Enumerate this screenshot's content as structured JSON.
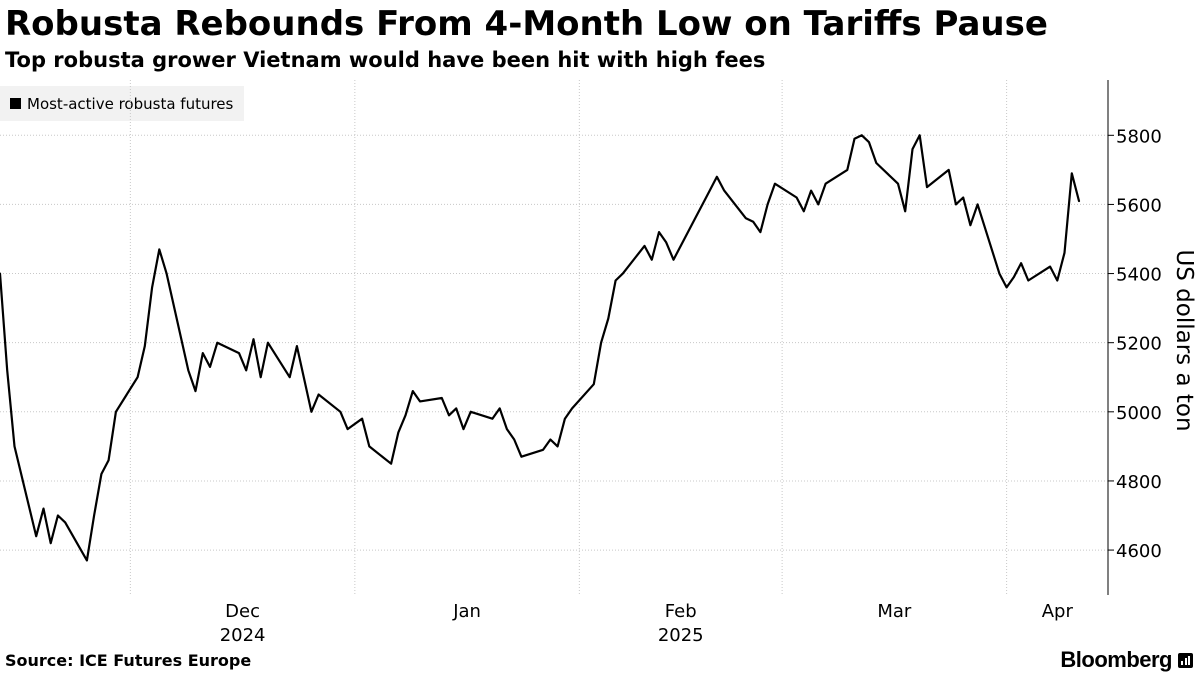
{
  "header": {
    "title": "Robusta Rebounds From 4-Month Low on Tariffs Pause",
    "subtitle": "Top robusta grower Vietnam would have been hit with high fees"
  },
  "footer": {
    "source": "Source: ICE Futures Europe",
    "brand": "Bloomberg"
  },
  "colors": {
    "line": "#000000",
    "grid": "#c8c8c8",
    "legend_bg": "#f2f2f2"
  },
  "chart_data": {
    "type": "line",
    "title": "Robusta Rebounds From 4-Month Low on Tariffs Pause",
    "subtitle": "Top robusta grower Vietnam would have been hit with high fees",
    "ylabel": "US dollars a ton",
    "ylim": [
      4470,
      5960
    ],
    "xlim": [
      "2024-11-13",
      "2025-04-15"
    ],
    "y_ticks": [
      4600,
      4800,
      5000,
      5200,
      5400,
      5600,
      5800
    ],
    "x_tick_labels": [
      {
        "label": "Dec",
        "year": "2024",
        "date": "2024-12-01"
      },
      {
        "label": "Jan",
        "year": "",
        "date": "2025-01-01"
      },
      {
        "label": "Feb",
        "year": "2025",
        "date": "2025-02-01"
      },
      {
        "label": "Mar",
        "year": "",
        "date": "2025-03-01"
      },
      {
        "label": "Apr",
        "year": "",
        "date": "2025-04-01"
      }
    ],
    "month_gridlines": [
      "2024-12-01",
      "2025-01-01",
      "2025-02-01",
      "2025-03-01",
      "2025-04-01"
    ],
    "grid": true,
    "legend_position": "top-left",
    "series": [
      {
        "name": "Most-active robusta futures",
        "color": "#000000",
        "points": [
          [
            "2024-11-13",
            5400
          ],
          [
            "2024-11-14",
            5120
          ],
          [
            "2024-11-15",
            4900
          ],
          [
            "2024-11-18",
            4640
          ],
          [
            "2024-11-19",
            4720
          ],
          [
            "2024-11-20",
            4620
          ],
          [
            "2024-11-21",
            4700
          ],
          [
            "2024-11-22",
            4680
          ],
          [
            "2024-11-25",
            4570
          ],
          [
            "2024-11-26",
            4700
          ],
          [
            "2024-11-27",
            4820
          ],
          [
            "2024-11-28",
            4860
          ],
          [
            "2024-11-29",
            5000
          ],
          [
            "2024-12-02",
            5100
          ],
          [
            "2024-12-03",
            5190
          ],
          [
            "2024-12-04",
            5360
          ],
          [
            "2024-12-05",
            5470
          ],
          [
            "2024-12-06",
            5400
          ],
          [
            "2024-12-09",
            5120
          ],
          [
            "2024-12-10",
            5060
          ],
          [
            "2024-12-11",
            5170
          ],
          [
            "2024-12-12",
            5130
          ],
          [
            "2024-12-13",
            5200
          ],
          [
            "2024-12-16",
            5170
          ],
          [
            "2024-12-17",
            5120
          ],
          [
            "2024-12-18",
            5210
          ],
          [
            "2024-12-19",
            5100
          ],
          [
            "2024-12-20",
            5200
          ],
          [
            "2024-12-23",
            5100
          ],
          [
            "2024-12-24",
            5190
          ],
          [
            "2024-12-26",
            5000
          ],
          [
            "2024-12-27",
            5050
          ],
          [
            "2024-12-30",
            5000
          ],
          [
            "2024-12-31",
            4950
          ],
          [
            "2025-01-02",
            4980
          ],
          [
            "2025-01-03",
            4900
          ],
          [
            "2025-01-06",
            4850
          ],
          [
            "2025-01-07",
            4940
          ],
          [
            "2025-01-08",
            4990
          ],
          [
            "2025-01-09",
            5060
          ],
          [
            "2025-01-10",
            5030
          ],
          [
            "2025-01-13",
            5040
          ],
          [
            "2025-01-14",
            4990
          ],
          [
            "2025-01-15",
            5010
          ],
          [
            "2025-01-16",
            4950
          ],
          [
            "2025-01-17",
            5000
          ],
          [
            "2025-01-20",
            4980
          ],
          [
            "2025-01-21",
            5010
          ],
          [
            "2025-01-22",
            4950
          ],
          [
            "2025-01-23",
            4920
          ],
          [
            "2025-01-24",
            4870
          ],
          [
            "2025-01-27",
            4890
          ],
          [
            "2025-01-28",
            4920
          ],
          [
            "2025-01-29",
            4900
          ],
          [
            "2025-01-30",
            4980
          ],
          [
            "2025-01-31",
            5010
          ],
          [
            "2025-02-03",
            5080
          ],
          [
            "2025-02-04",
            5200
          ],
          [
            "2025-02-05",
            5270
          ],
          [
            "2025-02-06",
            5380
          ],
          [
            "2025-02-07",
            5400
          ],
          [
            "2025-02-10",
            5480
          ],
          [
            "2025-02-11",
            5440
          ],
          [
            "2025-02-12",
            5520
          ],
          [
            "2025-02-13",
            5490
          ],
          [
            "2025-02-14",
            5440
          ],
          [
            "2025-02-17",
            5560
          ],
          [
            "2025-02-18",
            5600
          ],
          [
            "2025-02-19",
            5640
          ],
          [
            "2025-02-20",
            5680
          ],
          [
            "2025-02-21",
            5640
          ],
          [
            "2025-02-24",
            5560
          ],
          [
            "2025-02-25",
            5550
          ],
          [
            "2025-02-26",
            5520
          ],
          [
            "2025-02-27",
            5600
          ],
          [
            "2025-02-28",
            5660
          ],
          [
            "2025-03-03",
            5620
          ],
          [
            "2025-03-04",
            5580
          ],
          [
            "2025-03-05",
            5640
          ],
          [
            "2025-03-06",
            5600
          ],
          [
            "2025-03-07",
            5660
          ],
          [
            "2025-03-10",
            5700
          ],
          [
            "2025-03-11",
            5790
          ],
          [
            "2025-03-12",
            5800
          ],
          [
            "2025-03-13",
            5780
          ],
          [
            "2025-03-14",
            5720
          ],
          [
            "2025-03-17",
            5660
          ],
          [
            "2025-03-18",
            5580
          ],
          [
            "2025-03-19",
            5760
          ],
          [
            "2025-03-20",
            5800
          ],
          [
            "2025-03-21",
            5650
          ],
          [
            "2025-03-24",
            5700
          ],
          [
            "2025-03-25",
            5600
          ],
          [
            "2025-03-26",
            5620
          ],
          [
            "2025-03-27",
            5540
          ],
          [
            "2025-03-28",
            5600
          ],
          [
            "2025-03-31",
            5400
          ],
          [
            "2025-04-01",
            5360
          ],
          [
            "2025-04-02",
            5390
          ],
          [
            "2025-04-03",
            5430
          ],
          [
            "2025-04-04",
            5380
          ],
          [
            "2025-04-07",
            5420
          ],
          [
            "2025-04-08",
            5380
          ],
          [
            "2025-04-09",
            5460
          ],
          [
            "2025-04-10",
            5690
          ],
          [
            "2025-04-11",
            5610
          ]
        ]
      }
    ]
  },
  "legend": {
    "label": "Most-active robusta futures"
  },
  "axes": {
    "x_year_left": "2024",
    "x_year_right": "2025",
    "y_label": "US dollars a ton"
  }
}
